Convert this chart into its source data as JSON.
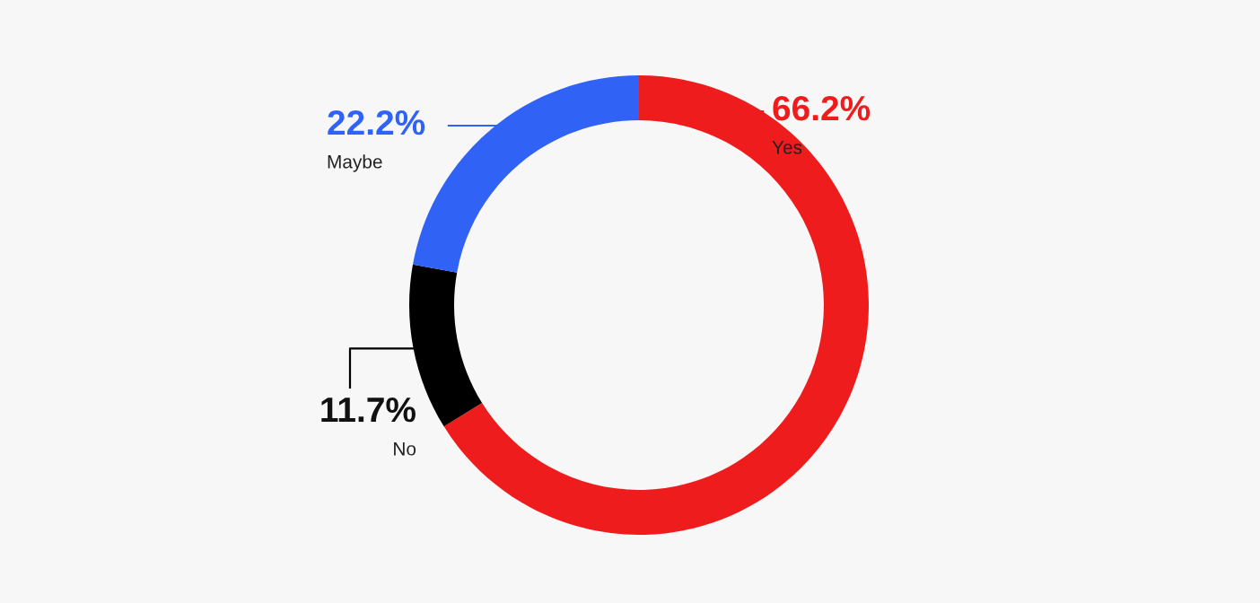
{
  "chart_data": {
    "type": "donut",
    "categories": [
      "Yes",
      "No",
      "Maybe"
    ],
    "values": [
      66.2,
      11.7,
      22.2
    ],
    "colors": [
      "#ee1c1c",
      "#000000",
      "#2f62f5"
    ],
    "value_labels": [
      "66.2%",
      "11.7%",
      "22.2%"
    ]
  }
}
